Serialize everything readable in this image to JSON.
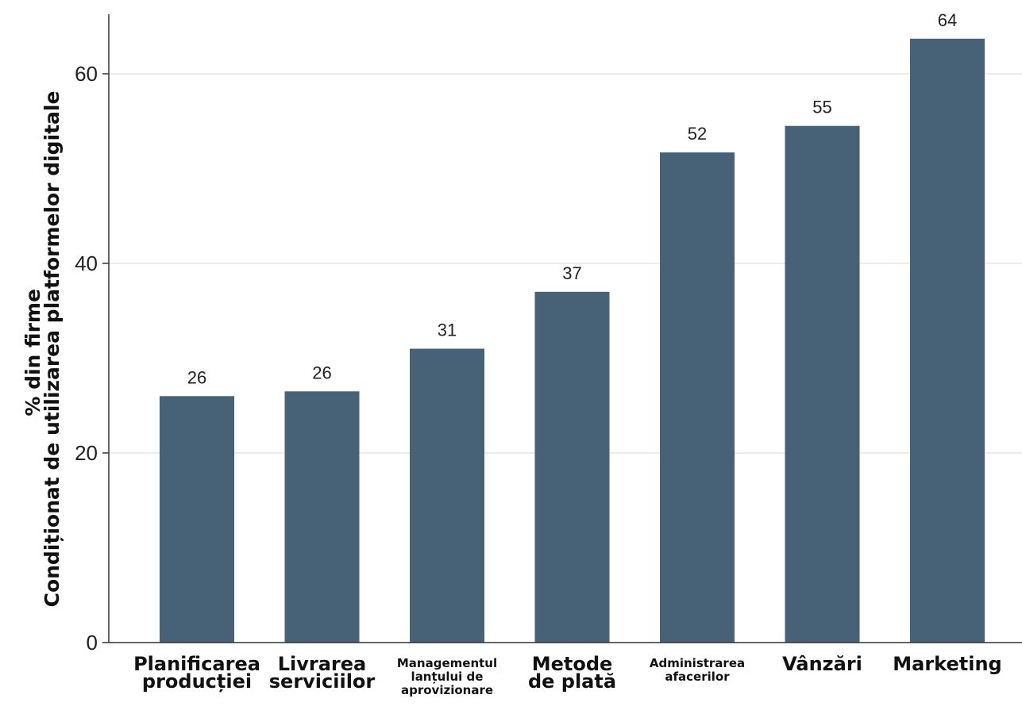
{
  "chart_data": {
    "type": "bar",
    "categories": [
      "Planificarea producției",
      "Livrarea serviciilor",
      "Managementul lanțului de aprovizionare",
      "Metode de plată",
      "Administrarea afacerilor",
      "Vânzări",
      "Marketing"
    ],
    "values": [
      26,
      26.5,
      31,
      37,
      51.7,
      54.5,
      63.7
    ],
    "value_labels": [
      "26",
      "26",
      "31",
      "37",
      "52",
      "55",
      "64"
    ],
    "ylabel_lines": [
      "% din firme",
      "Condiționat de utilizarea platformelor digitale"
    ],
    "yticks": [
      0,
      20,
      40,
      60
    ],
    "ylim": [
      0,
      66
    ],
    "grid": true,
    "bar_color": "#476177",
    "grid_color": "#ececec"
  }
}
